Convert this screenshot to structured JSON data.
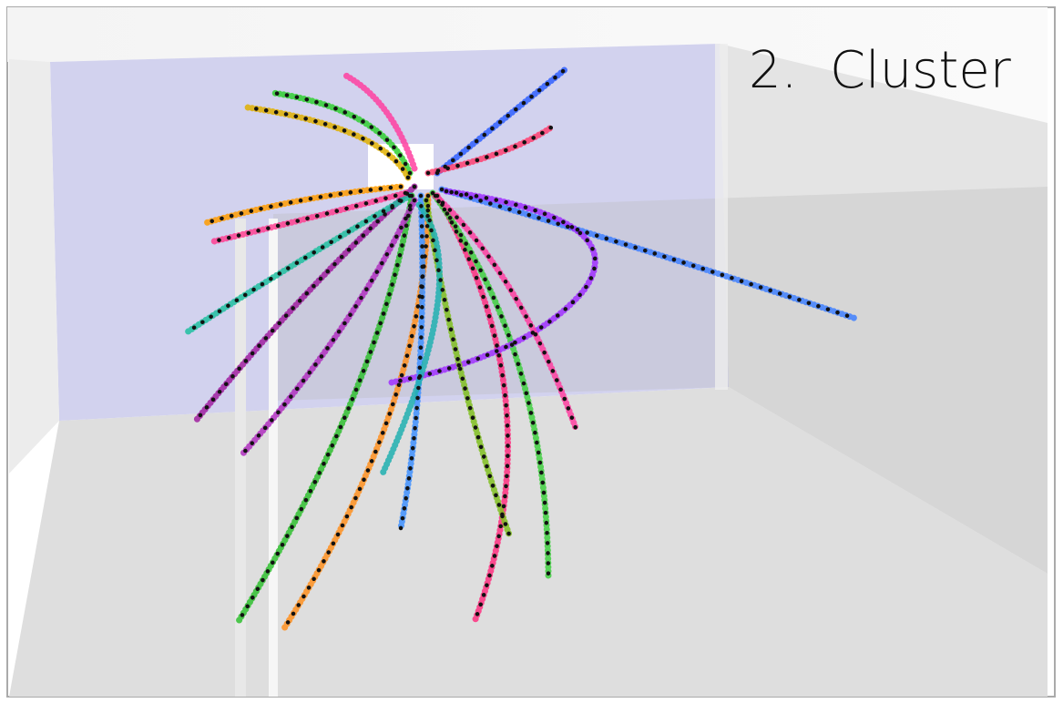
{
  "label": "2.  Cluster"
}
